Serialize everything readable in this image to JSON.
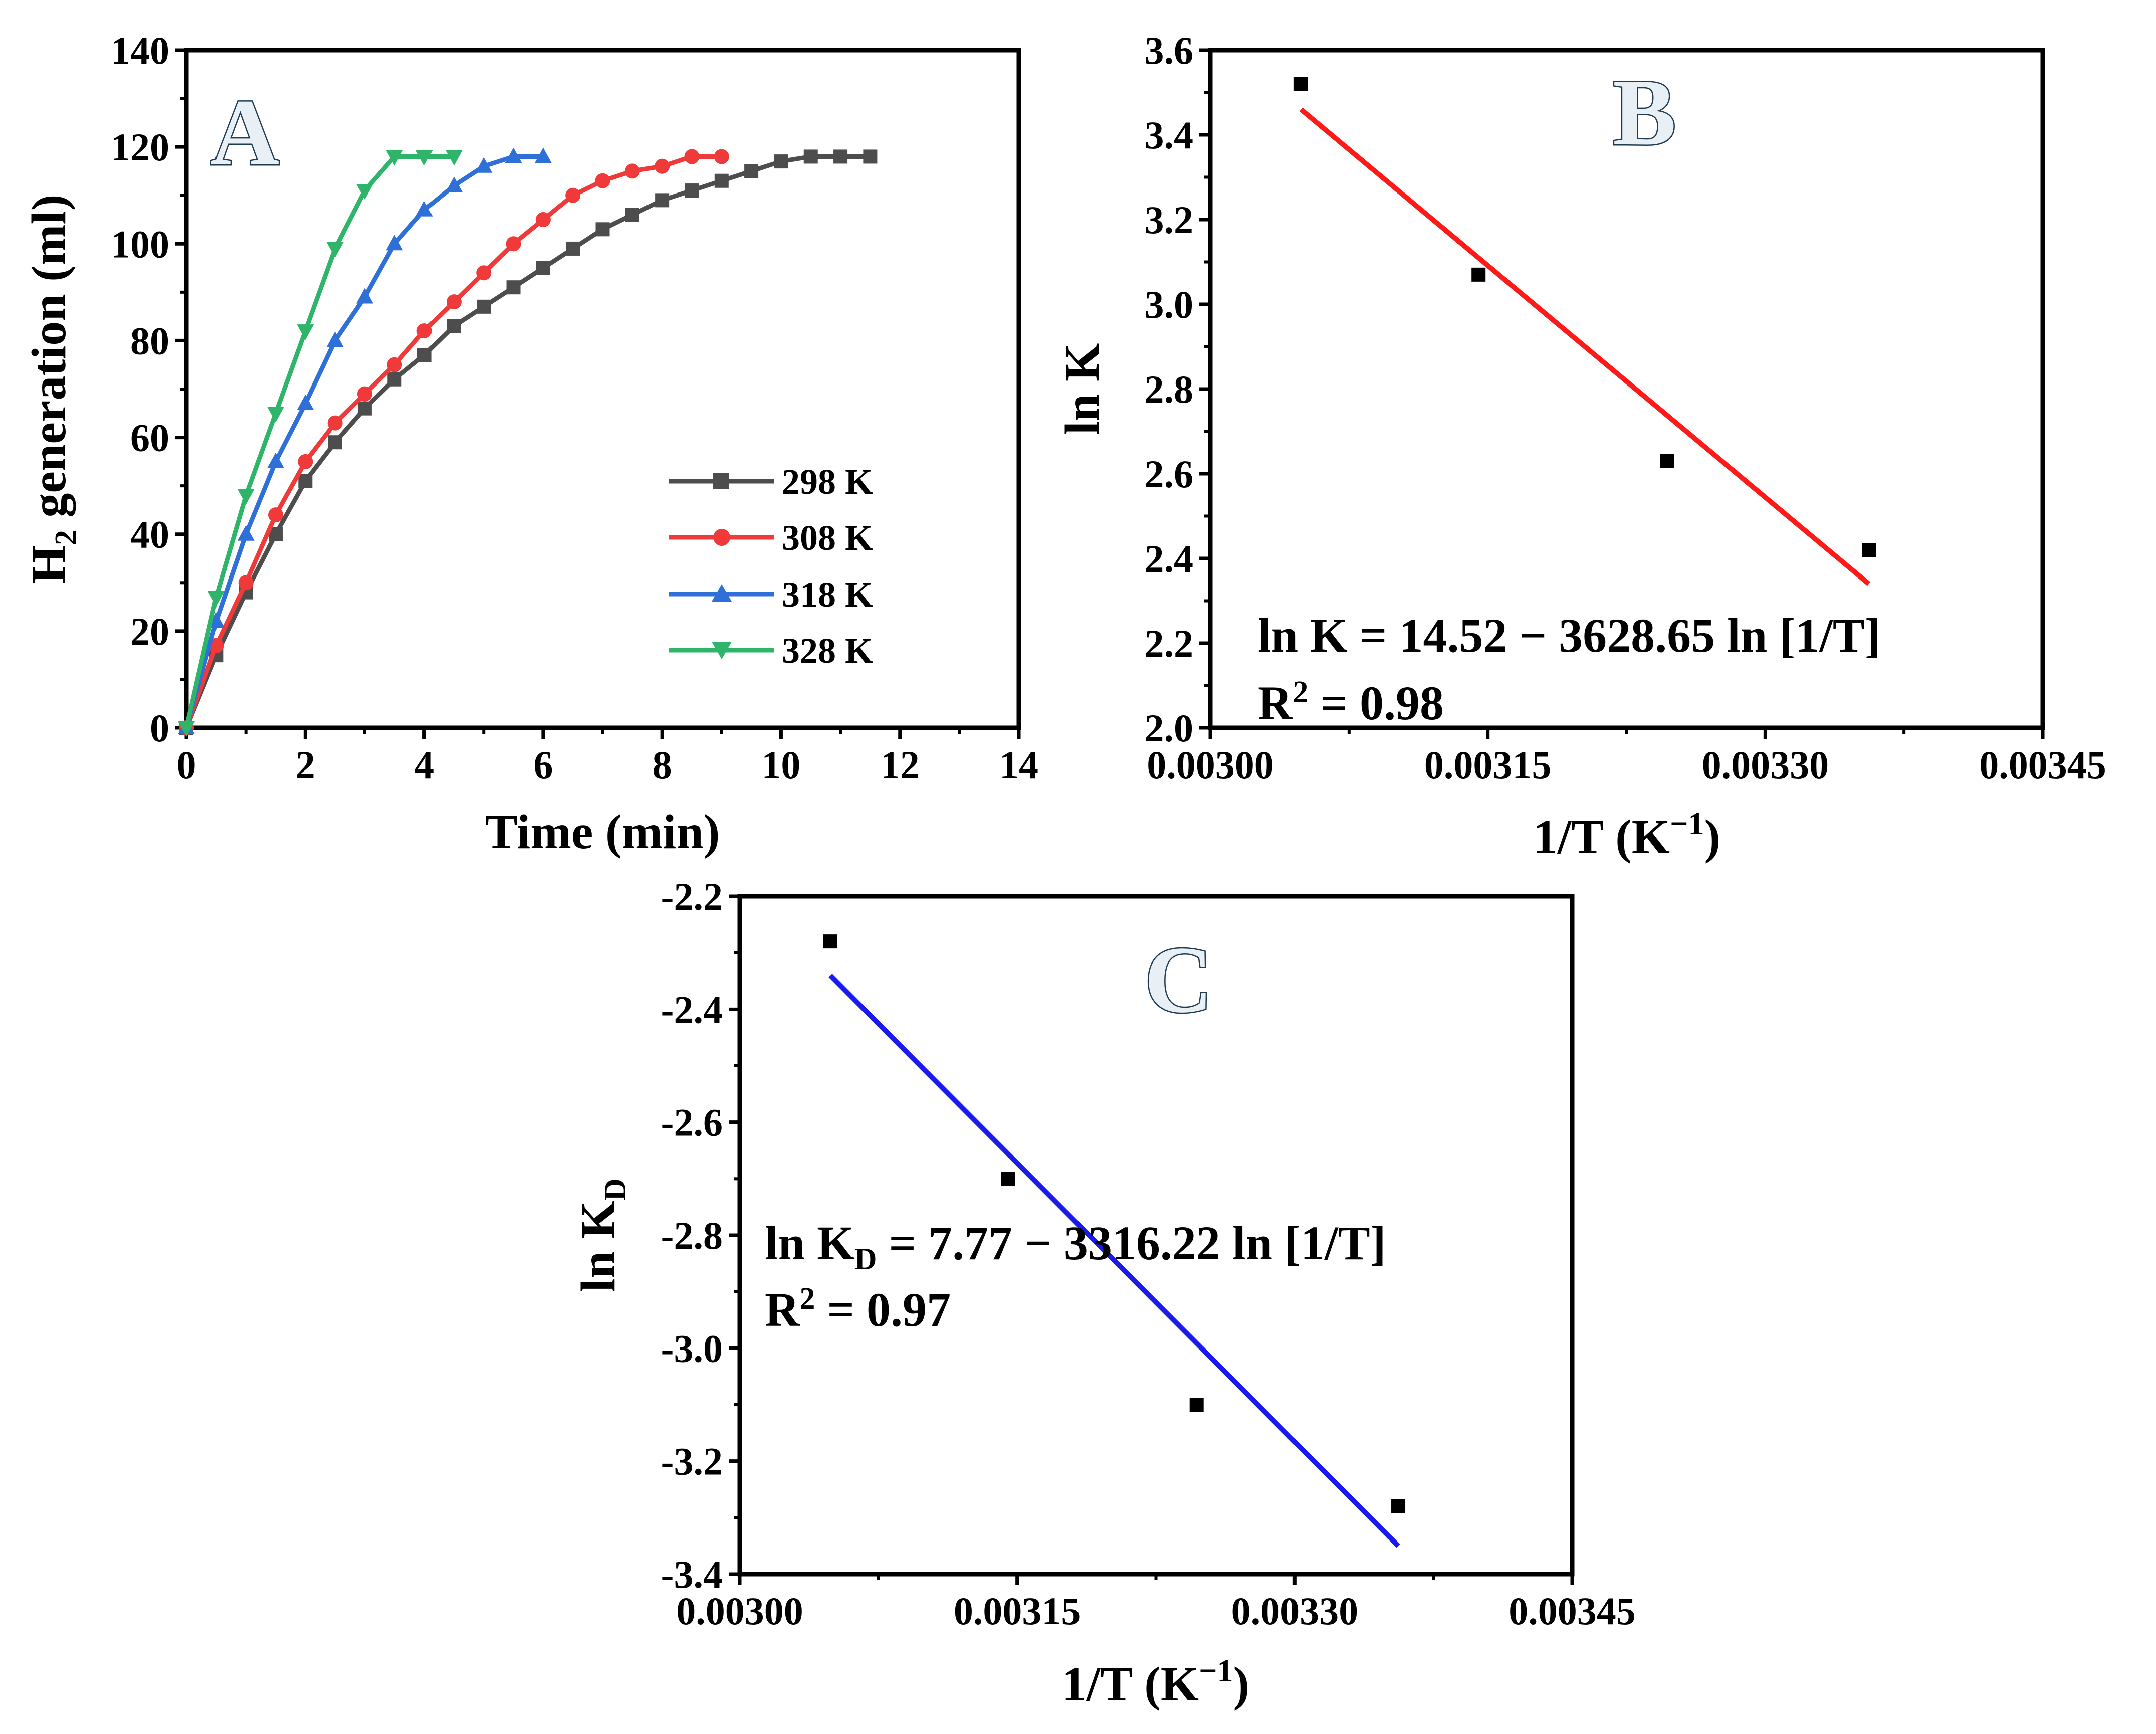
{
  "chart_data": [
    {
      "type": "line",
      "panel": "A",
      "xlabel": "Time (min)",
      "ylabel_main": "H",
      "ylabel_sub": "2",
      "ylabel_rest": " generation (ml)",
      "xlim": [
        0,
        14
      ],
      "ylim": [
        0,
        140
      ],
      "xticks": [
        "0",
        "2",
        "4",
        "6",
        "8",
        "10",
        "12",
        "14"
      ],
      "yticks": [
        "0",
        "20",
        "40",
        "60",
        "80",
        "100",
        "120",
        "140"
      ],
      "series": [
        {
          "name": "298 K",
          "color": "#4d4d4d",
          "marker": "square",
          "x": [
            0,
            0.5,
            1,
            1.5,
            2,
            2.5,
            3,
            3.5,
            4,
            4.5,
            5,
            5.5,
            6,
            6.5,
            7,
            7.5,
            8,
            8.5,
            9,
            9.5,
            10,
            10.5,
            11,
            11.5
          ],
          "y": [
            0,
            15,
            28,
            40,
            51,
            59,
            66,
            72,
            77,
            83,
            87,
            91,
            95,
            99,
            103,
            106,
            109,
            111,
            113,
            115,
            117,
            118,
            118,
            118
          ]
        },
        {
          "name": "308 K",
          "color": "#f03a3a",
          "marker": "circle",
          "x": [
            0,
            0.5,
            1,
            1.5,
            2,
            2.5,
            3,
            3.5,
            4,
            4.5,
            5,
            5.5,
            6,
            6.5,
            7,
            7.5,
            8,
            8.5,
            9
          ],
          "y": [
            0,
            17,
            30,
            44,
            55,
            63,
            69,
            75,
            82,
            88,
            94,
            100,
            105,
            110,
            113,
            115,
            116,
            118,
            118
          ]
        },
        {
          "name": "318 K",
          "color": "#2f6fd8",
          "marker": "triangle-up",
          "x": [
            0,
            0.5,
            1,
            1.5,
            2,
            2.5,
            3,
            3.5,
            4,
            4.5,
            5,
            5.5,
            6
          ],
          "y": [
            0,
            22,
            40,
            55,
            67,
            80,
            89,
            100,
            107,
            112,
            116,
            118,
            118
          ]
        },
        {
          "name": "328 K",
          "color": "#2fb56a",
          "marker": "triangle-down",
          "x": [
            0,
            0.5,
            1,
            1.5,
            2,
            2.5,
            3,
            3.5,
            4,
            4.5
          ],
          "y": [
            0,
            27,
            48,
            65,
            82,
            99,
            111,
            118,
            118,
            118
          ]
        }
      ]
    },
    {
      "type": "scatter",
      "panel": "B",
      "xlabel": "1/T (K",
      "xlabel_sup": "−1",
      "xlabel_end": ")",
      "ylabel": "ln K",
      "xlim": [
        0.003,
        0.00345
      ],
      "ylim": [
        2.0,
        3.6
      ],
      "xticks": [
        "0.00300",
        "0.00315",
        "0.00330",
        "0.00345"
      ],
      "yticks": [
        "2.0",
        "2.2",
        "2.4",
        "2.6",
        "2.8",
        "3.0",
        "3.2",
        "3.4",
        "3.6"
      ],
      "points": {
        "x": [
          0.003049,
          0.003145,
          0.003247,
          0.003356
        ],
        "y": [
          3.52,
          3.07,
          2.63,
          2.42
        ]
      },
      "fit_line": {
        "x": [
          0.003049,
          0.003356
        ],
        "y": [
          3.46,
          2.34
        ],
        "color": "#ff1a1a"
      },
      "equation": "ln K = 14.52 − 3628.65 ln [1/T]",
      "r2_prefix": "R",
      "r2_sup": "2",
      "r2_value": " = 0.98"
    },
    {
      "type": "scatter",
      "panel": "C",
      "xlabel": "1/T (K",
      "xlabel_sup": "−1",
      "xlabel_end": ")",
      "ylabel": "ln K",
      "ylabel_sub": "D",
      "xlim": [
        0.003,
        0.00345
      ],
      "ylim": [
        -3.4,
        -2.2
      ],
      "xticks": [
        "0.00300",
        "0.00315",
        "0.00330",
        "0.00345"
      ],
      "yticks": [
        "-2.2",
        "-2.4",
        "-2.6",
        "-2.8",
        "-3.0",
        "-3.2",
        "-3.4"
      ],
      "points": {
        "x": [
          0.003049,
          0.003145,
          0.003247,
          0.003356
        ],
        "y": [
          -2.28,
          -2.7,
          -3.1,
          -3.28
        ]
      },
      "fit_line": {
        "x": [
          0.003049,
          0.003356
        ],
        "y": [
          -2.34,
          -3.35
        ],
        "color": "#1a1aee"
      },
      "equation_prefix": "ln K",
      "equation_sub": "D",
      "equation_rest": " = 7.77 − 3316.22 ln [1/T]",
      "r2_prefix": "R",
      "r2_sup": "2",
      "r2_value": " = 0.97"
    }
  ]
}
